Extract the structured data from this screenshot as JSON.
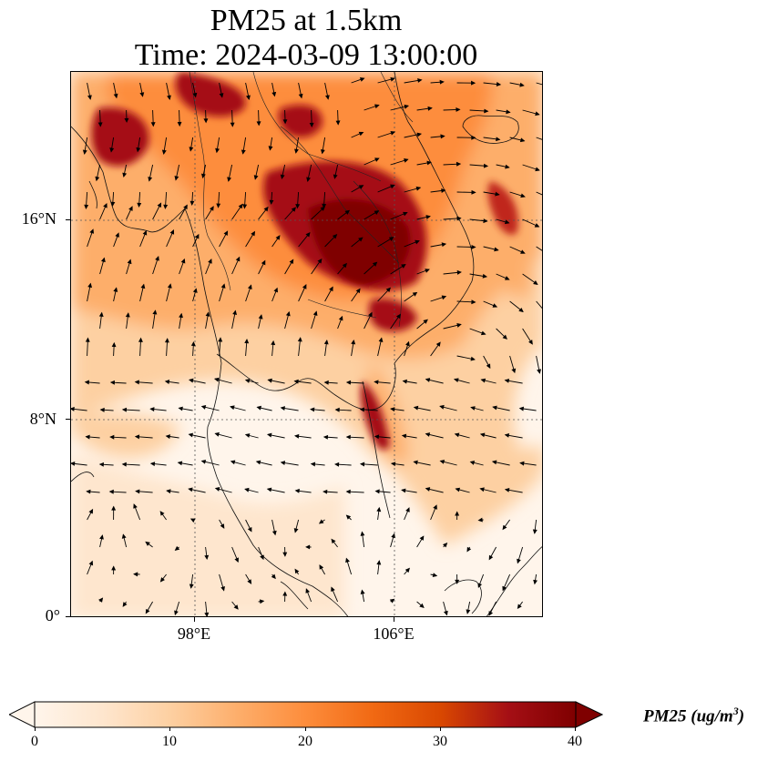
{
  "title_line1": "PM25 at 1.5km",
  "title_line2": "Time: 2024-03-09 13:00:00",
  "map": {
    "lat_ticks": [
      "16°N",
      "8°N",
      "0°"
    ],
    "lon_ticks": [
      "98°E",
      "106°E"
    ],
    "gridlines": "dotted",
    "colormap": "OrRd",
    "features": [
      "coastlines",
      "country-borders",
      "wind-vectors"
    ]
  },
  "colorbar": {
    "label_main": "PM25 (ug/m",
    "label_sup": "3",
    "label_end": ")",
    "ticks": [
      "0",
      "10",
      "20",
      "30",
      "40"
    ],
    "range": [
      0,
      40
    ],
    "extend": "both",
    "colors": [
      "#fff5eb",
      "#fee6ce",
      "#fdd0a2",
      "#fdae6b",
      "#fd8d3c",
      "#f16913",
      "#d94801",
      "#a50f15",
      "#7f0000"
    ]
  }
}
